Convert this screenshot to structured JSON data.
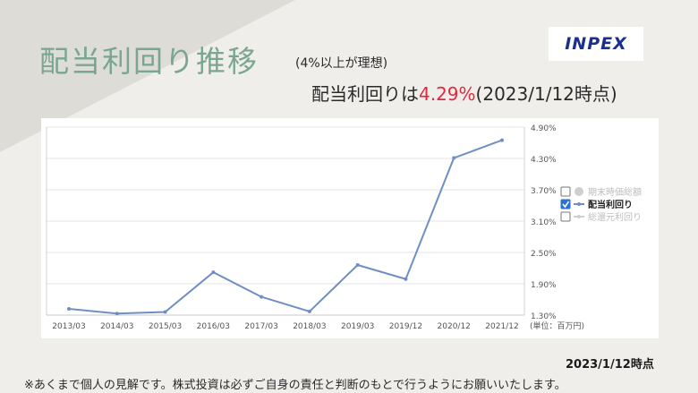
{
  "title": "配当利回り推移",
  "subtitle": "(4%以上が理想)",
  "logo_text": "INPEX",
  "headline": {
    "prefix": "配当利回りは",
    "value": "4.29%",
    "suffix": "(2023/1/12時点)"
  },
  "note": "2023/1/12時点",
  "disclaimer": "※あくまで個人の見解です。株式投資は必ずご自身の責任と判断のもとで行うようにお願いいたします。",
  "colors": {
    "title": "#7aa68f",
    "highlight": "#e0293e",
    "line": "#6f8fc4",
    "logo": "#1c2f8c"
  },
  "chart_data": {
    "type": "line",
    "categories": [
      "2013/03",
      "2014/03",
      "2015/03",
      "2016/03",
      "2017/03",
      "2018/03",
      "2019/03",
      "2019/12",
      "2020/12",
      "2021/12"
    ],
    "series": [
      {
        "name": "配当利回り",
        "values": [
          1.42,
          1.33,
          1.36,
          2.12,
          1.65,
          1.37,
          2.26,
          1.99,
          4.31,
          4.65
        ]
      }
    ],
    "y_ticks": [
      "4.90%",
      "4.30%",
      "3.70%",
      "3.10%",
      "2.50%",
      "1.90%",
      "1.30%"
    ],
    "ylim": [
      1.3,
      4.9
    ],
    "unit_label": "(単位：百万円)",
    "grid": true,
    "legend_position": "right",
    "legend": [
      {
        "label": "期末時価総額",
        "checked": false,
        "active": false
      },
      {
        "label": "配当利回り",
        "checked": true,
        "active": true
      },
      {
        "label": "総還元利回り",
        "checked": false,
        "active": false
      }
    ]
  }
}
